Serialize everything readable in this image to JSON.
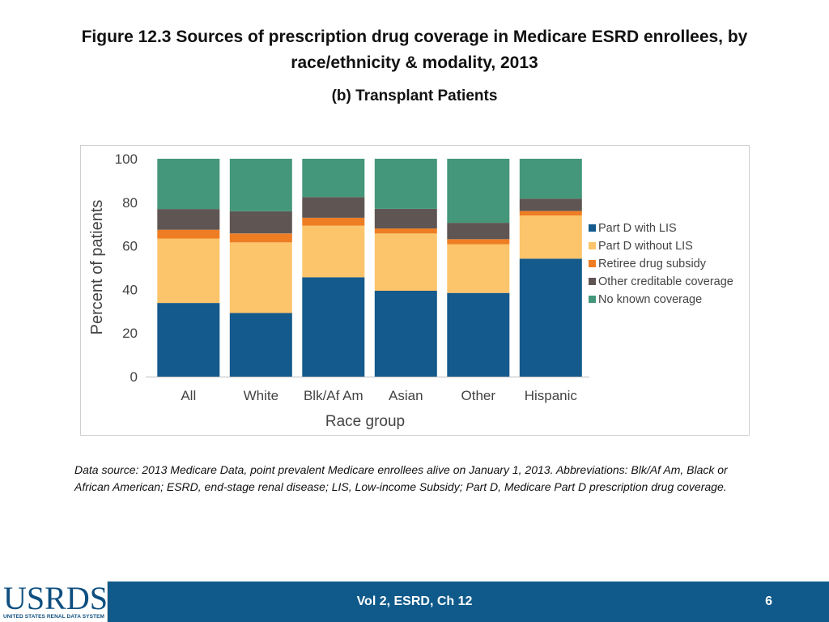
{
  "slide": {
    "title": "Figure 12.3 Sources of prescription drug coverage in Medicare ESRD enrollees, by race/ethnicity & modality, 2013",
    "subtitle": "(b) Transplant Patients",
    "footnote": "Data source: 2013 Medicare Data, point prevalent Medicare enrollees alive on January 1, 2013. Abbreviations: Blk/Af Am, Black or African American; ESRD, end-stage renal disease; LIS, Low-income Subsidy; Part D, Medicare Part D prescription drug coverage."
  },
  "footer": {
    "logo_text": "USRDS",
    "logo_subtext": "UNITED STATES RENAL DATA SYSTEM",
    "center_text": "Vol 2, ESRD, Ch 12",
    "page_number": "6",
    "bg_color": "#0f5a8a"
  },
  "chart_data": {
    "type": "bar",
    "stacked": true,
    "title": "",
    "xlabel": "Race group",
    "ylabel": "Percent of patients",
    "ylim": [
      0,
      100
    ],
    "yticks": [
      0,
      20,
      40,
      60,
      80,
      100
    ],
    "categories": [
      "All",
      "White",
      "Blk/Af Am",
      "Asian",
      "Other",
      "Hispanic"
    ],
    "legend_position": "right",
    "series": [
      {
        "name": "Part D with LIS",
        "color": "#145a8c",
        "values": [
          33.8,
          29.2,
          45.6,
          39.4,
          38.4,
          54.1
        ]
      },
      {
        "name": "Part D without LIS",
        "color": "#fcc46b",
        "values": [
          29.6,
          32.4,
          23.7,
          26.3,
          22.4,
          19.9
        ]
      },
      {
        "name": "Retiree drug subsidy",
        "color": "#ee7d23",
        "values": [
          4.0,
          4.1,
          3.6,
          2.3,
          2.3,
          2.0
        ]
      },
      {
        "name": "Other creditable coverage",
        "color": "#5f5654",
        "values": [
          9.5,
          10.2,
          9.5,
          9.0,
          7.5,
          5.7
        ]
      },
      {
        "name": "No known coverage",
        "color": "#44977a",
        "values": [
          23.1,
          24.1,
          17.6,
          23.0,
          29.4,
          18.3
        ]
      }
    ]
  }
}
